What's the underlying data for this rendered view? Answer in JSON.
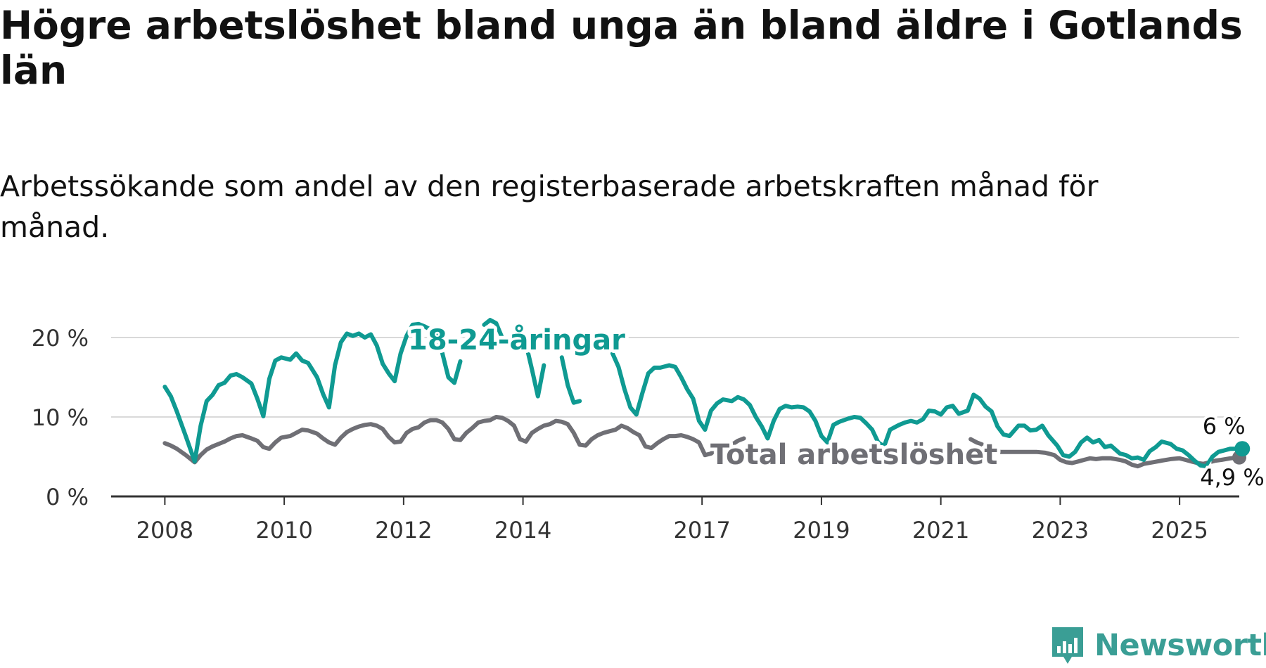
{
  "title": "Högre arbetslöshet bland unga än bland äldre i Gotlands län",
  "subtitle": "Arbetssökande som andel av den registerbaserade arbetskraften månad för månad.",
  "brand": {
    "name": "Newsworthy",
    "icon": "newsworthy-logo-icon",
    "color": "#3a9e95"
  },
  "chart_data": {
    "type": "line",
    "x_tick_labels": [
      "2008",
      "2010",
      "2012",
      "2014",
      "2017",
      "2019",
      "2021",
      "2023",
      "2025"
    ],
    "x_tick_years": [
      2008,
      2010,
      2012,
      2014,
      2017,
      2019,
      2021,
      2023,
      2025
    ],
    "y_tick_labels": [
      "0 %",
      "10 %",
      "20 %"
    ],
    "y_ticks": [
      0,
      10,
      20
    ],
    "ylim": [
      0,
      23
    ],
    "xlim": [
      2007.1,
      2026.0
    ],
    "grid": true,
    "legend": "none (series labels drawn inline)",
    "series": [
      {
        "name": "18-24-åringar",
        "color": "#0f9a92",
        "end_label": "6 %",
        "points": [
          [
            2008.0,
            13.8
          ],
          [
            2008.1,
            12.6
          ],
          [
            2008.2,
            10.7
          ],
          [
            2008.35,
            7.6
          ],
          [
            2008.5,
            4.4
          ],
          [
            2008.6,
            8.9
          ],
          [
            2008.7,
            12.0
          ],
          [
            2008.8,
            12.8
          ],
          [
            2008.9,
            14.0
          ],
          [
            2009.0,
            14.3
          ],
          [
            2009.1,
            15.2
          ],
          [
            2009.2,
            15.4
          ],
          [
            2009.3,
            15.0
          ],
          [
            2009.45,
            14.2
          ],
          [
            2009.55,
            12.3
          ],
          [
            2009.65,
            10.1
          ],
          [
            2009.75,
            14.8
          ],
          [
            2009.85,
            17.1
          ],
          [
            2009.95,
            17.5
          ],
          [
            2010.1,
            17.2
          ],
          [
            2010.2,
            18.0
          ],
          [
            2010.3,
            17.1
          ],
          [
            2010.4,
            16.8
          ],
          [
            2010.55,
            15.0
          ],
          [
            2010.65,
            12.9
          ],
          [
            2010.75,
            11.2
          ],
          [
            2010.85,
            16.5
          ],
          [
            2010.95,
            19.4
          ],
          [
            2011.05,
            20.5
          ],
          [
            2011.15,
            20.2
          ],
          [
            2011.25,
            20.5
          ],
          [
            2011.35,
            20.0
          ],
          [
            2011.45,
            20.4
          ],
          [
            2011.55,
            19.0
          ],
          [
            2011.65,
            16.7
          ],
          [
            2011.75,
            15.5
          ],
          [
            2011.85,
            14.5
          ],
          [
            2011.95,
            18.0
          ],
          [
            2012.05,
            20.2
          ],
          [
            2012.15,
            21.6
          ],
          [
            2012.25,
            21.7
          ],
          [
            2012.35,
            21.4
          ],
          [
            2012.45,
            21.0
          ]
        ],
        "segments_extra": [
          [
            [
              2012.45,
              21.0
            ],
            [
              2012.55,
              20.2
            ],
            [
              2012.65,
              18.0
            ],
            [
              2012.75,
              15.0
            ],
            [
              2012.85,
              14.3
            ],
            [
              2012.95,
              17.0
            ]
          ],
          [
            [
              2013.35,
              21.6
            ],
            [
              2013.45,
              22.2
            ],
            [
              2013.55,
              21.8
            ],
            [
              2013.65,
              20.0
            ]
          ],
          [
            [
              2014.05,
              19.2
            ],
            [
              2014.15,
              16.0
            ],
            [
              2014.25,
              12.6
            ],
            [
              2014.35,
              16.5
            ]
          ],
          [
            [
              2014.65,
              17.5
            ],
            [
              2014.75,
              14.0
            ],
            [
              2014.85,
              11.8
            ],
            [
              2014.95,
              12.0
            ]
          ]
        ],
        "points2": [
          [
            2015.5,
            18.0
          ],
          [
            2015.6,
            16.3
          ],
          [
            2015.7,
            13.5
          ],
          [
            2015.8,
            11.2
          ],
          [
            2015.9,
            10.3
          ],
          [
            2016.0,
            13.0
          ],
          [
            2016.1,
            15.5
          ],
          [
            2016.2,
            16.2
          ],
          [
            2016.3,
            16.2
          ],
          [
            2016.45,
            16.5
          ],
          [
            2016.55,
            16.3
          ],
          [
            2016.65,
            15.0
          ],
          [
            2016.75,
            13.5
          ],
          [
            2016.85,
            12.3
          ],
          [
            2016.95,
            9.5
          ],
          [
            2017.05,
            8.4
          ],
          [
            2017.15,
            10.8
          ],
          [
            2017.25,
            11.7
          ],
          [
            2017.35,
            12.2
          ],
          [
            2017.5,
            12.0
          ],
          [
            2017.6,
            12.5
          ],
          [
            2017.7,
            12.2
          ],
          [
            2017.8,
            11.5
          ],
          [
            2017.9,
            10.0
          ],
          [
            2018.0,
            8.8
          ],
          [
            2018.1,
            7.3
          ],
          [
            2018.2,
            9.5
          ],
          [
            2018.3,
            11.0
          ],
          [
            2018.4,
            11.4
          ],
          [
            2018.5,
            11.2
          ],
          [
            2018.6,
            11.3
          ],
          [
            2018.7,
            11.2
          ],
          [
            2018.8,
            10.7
          ],
          [
            2018.9,
            9.5
          ],
          [
            2019.0,
            7.6
          ],
          [
            2019.1,
            6.8
          ],
          [
            2019.2,
            9.0
          ],
          [
            2019.3,
            9.4
          ],
          [
            2019.45,
            9.8
          ],
          [
            2019.55,
            10.0
          ],
          [
            2019.65,
            9.9
          ],
          [
            2019.75,
            9.2
          ],
          [
            2019.85,
            8.4
          ],
          [
            2019.95,
            6.8
          ],
          [
            2020.05,
            6.3
          ],
          [
            2020.15,
            8.4
          ],
          [
            2020.3,
            9.0
          ],
          [
            2020.4,
            9.3
          ],
          [
            2020.5,
            9.5
          ],
          [
            2020.6,
            9.3
          ],
          [
            2020.7,
            9.7
          ],
          [
            2020.8,
            10.8
          ],
          [
            2020.9,
            10.7
          ],
          [
            2021.0,
            10.3
          ],
          [
            2021.1,
            11.2
          ],
          [
            2021.2,
            11.4
          ],
          [
            2021.3,
            10.4
          ],
          [
            2021.45,
            10.8
          ],
          [
            2021.55,
            12.8
          ],
          [
            2021.65,
            12.3
          ],
          [
            2021.75,
            11.3
          ],
          [
            2021.85,
            10.7
          ],
          [
            2021.95,
            8.8
          ],
          [
            2022.05,
            7.8
          ],
          [
            2022.15,
            7.6
          ],
          [
            2022.3,
            8.9
          ],
          [
            2022.4,
            8.9
          ],
          [
            2022.5,
            8.3
          ],
          [
            2022.6,
            8.4
          ],
          [
            2022.7,
            8.9
          ],
          [
            2022.8,
            7.7
          ],
          [
            2022.95,
            6.4
          ],
          [
            2023.05,
            5.2
          ],
          [
            2023.15,
            5.0
          ],
          [
            2023.25,
            5.6
          ],
          [
            2023.35,
            6.8
          ],
          [
            2023.45,
            7.4
          ],
          [
            2023.55,
            6.8
          ],
          [
            2023.65,
            7.1
          ],
          [
            2023.75,
            6.2
          ],
          [
            2023.85,
            6.4
          ],
          [
            2024.0,
            5.4
          ],
          [
            2024.1,
            5.2
          ],
          [
            2024.2,
            4.8
          ],
          [
            2024.3,
            4.9
          ],
          [
            2024.4,
            4.6
          ],
          [
            2024.5,
            5.7
          ],
          [
            2024.6,
            6.2
          ],
          [
            2024.7,
            6.9
          ],
          [
            2024.85,
            6.6
          ],
          [
            2024.95,
            6.0
          ],
          [
            2025.05,
            5.8
          ],
          [
            2025.15,
            5.2
          ],
          [
            2025.25,
            4.5
          ],
          [
            2025.35,
            3.9
          ],
          [
            2025.45,
            3.8
          ],
          [
            2025.55,
            5.0
          ],
          [
            2025.65,
            5.6
          ],
          [
            2025.75,
            5.8
          ],
          [
            2025.85,
            6.0
          ],
          [
            2025.95,
            6.0
          ],
          [
            2026.05,
            6.0
          ]
        ]
      },
      {
        "name": "Total arbetslöshet",
        "color": "#6f6f75",
        "end_label": "4,9 %",
        "points": [
          [
            2008.0,
            6.7
          ],
          [
            2008.1,
            6.4
          ],
          [
            2008.2,
            6.0
          ],
          [
            2008.35,
            5.2
          ],
          [
            2008.5,
            4.3
          ],
          [
            2008.6,
            5.2
          ],
          [
            2008.7,
            5.9
          ],
          [
            2008.8,
            6.3
          ],
          [
            2008.9,
            6.6
          ],
          [
            2009.0,
            6.9
          ],
          [
            2009.1,
            7.3
          ],
          [
            2009.2,
            7.6
          ],
          [
            2009.3,
            7.7
          ],
          [
            2009.45,
            7.3
          ],
          [
            2009.55,
            7.0
          ],
          [
            2009.65,
            6.2
          ],
          [
            2009.75,
            6.0
          ],
          [
            2009.85,
            6.8
          ],
          [
            2009.95,
            7.4
          ],
          [
            2010.1,
            7.6
          ],
          [
            2010.2,
            8.0
          ],
          [
            2010.3,
            8.4
          ],
          [
            2010.4,
            8.3
          ],
          [
            2010.55,
            7.9
          ],
          [
            2010.65,
            7.3
          ],
          [
            2010.75,
            6.8
          ],
          [
            2010.85,
            6.5
          ],
          [
            2010.95,
            7.4
          ],
          [
            2011.05,
            8.1
          ],
          [
            2011.15,
            8.5
          ],
          [
            2011.25,
            8.8
          ],
          [
            2011.35,
            9.0
          ],
          [
            2011.45,
            9.1
          ],
          [
            2011.55,
            8.9
          ],
          [
            2011.65,
            8.5
          ],
          [
            2011.75,
            7.5
          ],
          [
            2011.85,
            6.8
          ],
          [
            2011.95,
            6.9
          ],
          [
            2012.05,
            8.0
          ],
          [
            2012.15,
            8.5
          ],
          [
            2012.25,
            8.7
          ],
          [
            2012.35,
            9.3
          ],
          [
            2012.45,
            9.6
          ],
          [
            2012.55,
            9.6
          ],
          [
            2012.65,
            9.3
          ],
          [
            2012.75,
            8.5
          ],
          [
            2012.85,
            7.2
          ],
          [
            2012.95,
            7.1
          ],
          [
            2013.05,
            8.0
          ],
          [
            2013.15,
            8.6
          ],
          [
            2013.25,
            9.3
          ],
          [
            2013.35,
            9.5
          ],
          [
            2013.45,
            9.6
          ],
          [
            2013.55,
            10.0
          ],
          [
            2013.65,
            9.9
          ],
          [
            2013.75,
            9.5
          ],
          [
            2013.85,
            8.9
          ],
          [
            2013.95,
            7.2
          ],
          [
            2014.05,
            6.9
          ],
          [
            2014.15,
            8.0
          ],
          [
            2014.25,
            8.5
          ],
          [
            2014.35,
            8.9
          ],
          [
            2014.45,
            9.1
          ],
          [
            2014.55,
            9.5
          ],
          [
            2014.65,
            9.4
          ],
          [
            2014.75,
            9.1
          ],
          [
            2014.85,
            8.0
          ],
          [
            2014.95,
            6.5
          ],
          [
            2015.05,
            6.4
          ],
          [
            2015.15,
            7.2
          ],
          [
            2015.25,
            7.7
          ],
          [
            2015.35,
            8.0
          ],
          [
            2015.45,
            8.2
          ],
          [
            2015.55,
            8.4
          ],
          [
            2015.65,
            8.9
          ],
          [
            2015.75,
            8.6
          ],
          [
            2015.85,
            8.1
          ],
          [
            2015.95,
            7.7
          ],
          [
            2016.05,
            6.3
          ],
          [
            2016.15,
            6.1
          ],
          [
            2016.25,
            6.7
          ],
          [
            2016.35,
            7.2
          ],
          [
            2016.45,
            7.6
          ],
          [
            2016.55,
            7.6
          ],
          [
            2016.65,
            7.7
          ],
          [
            2016.75,
            7.5
          ],
          [
            2016.85,
            7.2
          ],
          [
            2016.95,
            6.8
          ],
          [
            2017.05,
            5.2
          ],
          [
            2017.15,
            5.4
          ],
          [
            2017.25,
            6.0
          ],
          [
            2017.35,
            6.3
          ],
          [
            2017.5,
            6.5
          ],
          [
            2017.6,
            7.0
          ],
          [
            2017.7,
            7.3
          ]
        ],
        "points2": [
          [
            2021.5,
            7.2
          ],
          [
            2021.6,
            6.8
          ],
          [
            2021.7,
            6.5
          ],
          [
            2021.8,
            6.2
          ],
          [
            2021.9,
            5.8
          ],
          [
            2022.0,
            5.6
          ],
          [
            2022.15,
            5.6
          ],
          [
            2022.3,
            5.6
          ],
          [
            2022.45,
            5.6
          ],
          [
            2022.6,
            5.6
          ],
          [
            2022.75,
            5.5
          ],
          [
            2022.9,
            5.2
          ],
          [
            2023.0,
            4.6
          ],
          [
            2023.1,
            4.3
          ],
          [
            2023.2,
            4.2
          ],
          [
            2023.3,
            4.4
          ],
          [
            2023.4,
            4.6
          ],
          [
            2023.5,
            4.8
          ],
          [
            2023.6,
            4.7
          ],
          [
            2023.7,
            4.8
          ],
          [
            2023.85,
            4.8
          ],
          [
            2024.0,
            4.6
          ],
          [
            2024.1,
            4.4
          ],
          [
            2024.2,
            4.0
          ],
          [
            2024.3,
            3.8
          ],
          [
            2024.4,
            4.1
          ],
          [
            2024.55,
            4.3
          ],
          [
            2024.7,
            4.5
          ],
          [
            2024.85,
            4.7
          ],
          [
            2025.0,
            4.8
          ],
          [
            2025.1,
            4.6
          ],
          [
            2025.2,
            4.4
          ],
          [
            2025.3,
            4.2
          ],
          [
            2025.4,
            4.1
          ],
          [
            2025.5,
            4.3
          ],
          [
            2025.6,
            4.5
          ],
          [
            2025.7,
            4.6
          ],
          [
            2025.85,
            4.8
          ],
          [
            2026.0,
            4.9
          ]
        ]
      }
    ]
  }
}
